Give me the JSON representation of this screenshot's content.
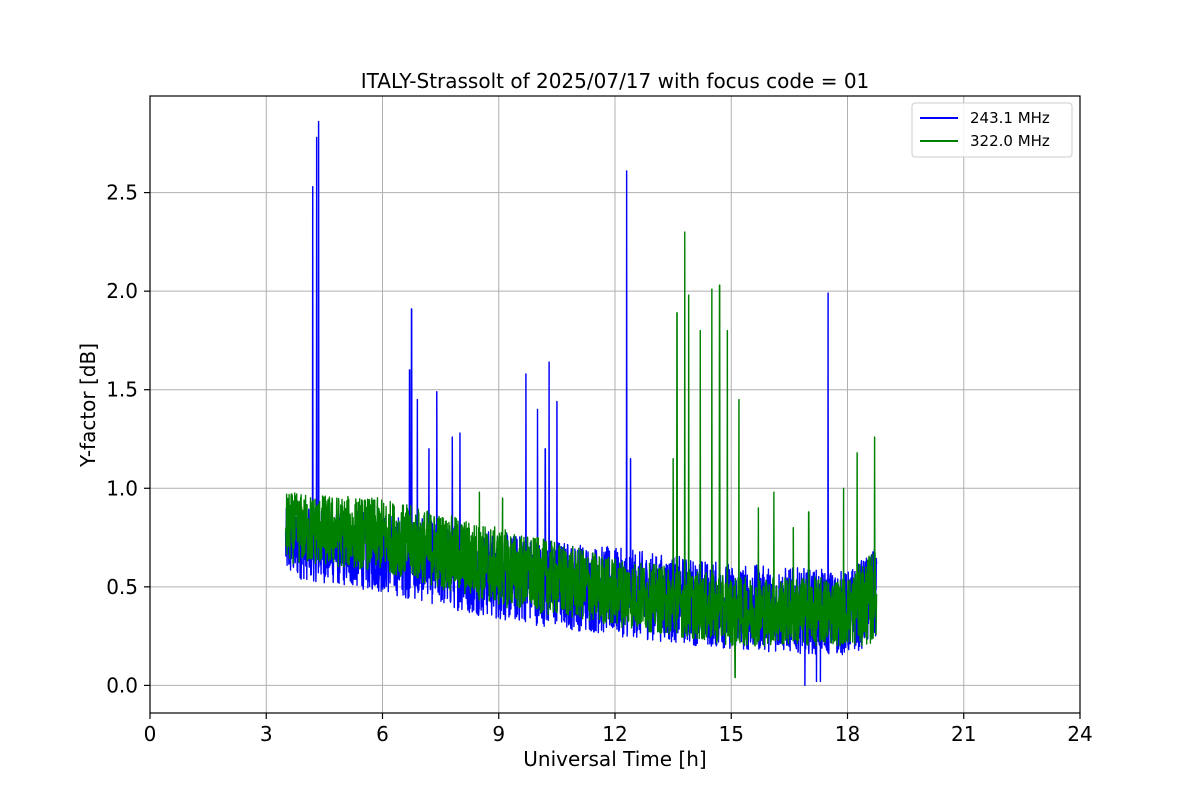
{
  "chart_data": {
    "type": "line",
    "title": "ITALY-Strassolt of 2025/07/17 with focus code = 01",
    "xlabel": "Universal Time [h]",
    "ylabel": "Y-factor [dB]",
    "xlim": [
      0,
      24
    ],
    "ylim": [
      -0.14,
      2.99
    ],
    "xticks": [
      0,
      3,
      6,
      9,
      12,
      15,
      18,
      21,
      24
    ],
    "xtick_labels": [
      "0",
      "3",
      "6",
      "9",
      "12",
      "15",
      "18",
      "21",
      "24"
    ],
    "yticks": [
      0.0,
      0.5,
      1.0,
      1.5,
      2.0,
      2.5
    ],
    "ytick_labels": [
      "0.0",
      "0.5",
      "1.0",
      "1.5",
      "2.0",
      "2.5"
    ],
    "grid": true,
    "legend_position": "top-right",
    "x_range": [
      3.5,
      18.75
    ],
    "series": [
      {
        "name": "243.1 MHz",
        "color": "#0000ff",
        "envelope": {
          "x": [
            3.5,
            6.0,
            9.0,
            12.0,
            15.0,
            18.0,
            18.75
          ],
          "low": [
            0.55,
            0.47,
            0.33,
            0.25,
            0.18,
            0.15,
            0.22
          ],
          "high": [
            0.9,
            0.88,
            0.78,
            0.7,
            0.62,
            0.58,
            0.7
          ]
        },
        "peaks": [
          {
            "x": 4.2,
            "y": 2.53
          },
          {
            "x": 4.35,
            "y": 2.86
          },
          {
            "x": 4.3,
            "y": 2.78
          },
          {
            "x": 6.7,
            "y": 1.6
          },
          {
            "x": 6.75,
            "y": 1.91
          },
          {
            "x": 6.9,
            "y": 1.45
          },
          {
            "x": 7.2,
            "y": 1.2
          },
          {
            "x": 7.4,
            "y": 1.49
          },
          {
            "x": 7.8,
            "y": 1.26
          },
          {
            "x": 8.0,
            "y": 1.28
          },
          {
            "x": 9.7,
            "y": 1.58
          },
          {
            "x": 10.0,
            "y": 1.4
          },
          {
            "x": 10.3,
            "y": 1.64
          },
          {
            "x": 10.5,
            "y": 1.44
          },
          {
            "x": 10.2,
            "y": 1.2
          },
          {
            "x": 12.3,
            "y": 2.61
          },
          {
            "x": 12.4,
            "y": 1.15
          },
          {
            "x": 17.5,
            "y": 1.99
          },
          {
            "x": 16.9,
            "y": 0.0
          },
          {
            "x": 17.2,
            "y": 0.02
          },
          {
            "x": 17.3,
            "y": 0.02
          }
        ]
      },
      {
        "name": "322.0 MHz",
        "color": "#008000",
        "envelope": {
          "x": [
            3.5,
            6.0,
            9.0,
            12.0,
            15.0,
            18.0,
            18.75
          ],
          "low": [
            0.62,
            0.58,
            0.4,
            0.3,
            0.2,
            0.2,
            0.2
          ],
          "high": [
            0.98,
            0.95,
            0.8,
            0.65,
            0.55,
            0.55,
            0.7
          ]
        },
        "peaks": [
          {
            "x": 13.5,
            "y": 1.15
          },
          {
            "x": 13.6,
            "y": 1.89
          },
          {
            "x": 13.8,
            "y": 2.3
          },
          {
            "x": 13.9,
            "y": 1.98
          },
          {
            "x": 14.2,
            "y": 1.8
          },
          {
            "x": 14.5,
            "y": 2.01
          },
          {
            "x": 14.7,
            "y": 2.03
          },
          {
            "x": 14.9,
            "y": 1.8
          },
          {
            "x": 15.2,
            "y": 1.45
          },
          {
            "x": 15.7,
            "y": 0.9
          },
          {
            "x": 16.1,
            "y": 0.98
          },
          {
            "x": 16.6,
            "y": 0.8
          },
          {
            "x": 17.0,
            "y": 0.88
          },
          {
            "x": 17.9,
            "y": 1.0
          },
          {
            "x": 18.25,
            "y": 1.18
          },
          {
            "x": 18.7,
            "y": 1.26
          },
          {
            "x": 9.1,
            "y": 0.95
          },
          {
            "x": 8.5,
            "y": 0.98
          },
          {
            "x": 15.1,
            "y": 0.04
          }
        ]
      }
    ]
  }
}
